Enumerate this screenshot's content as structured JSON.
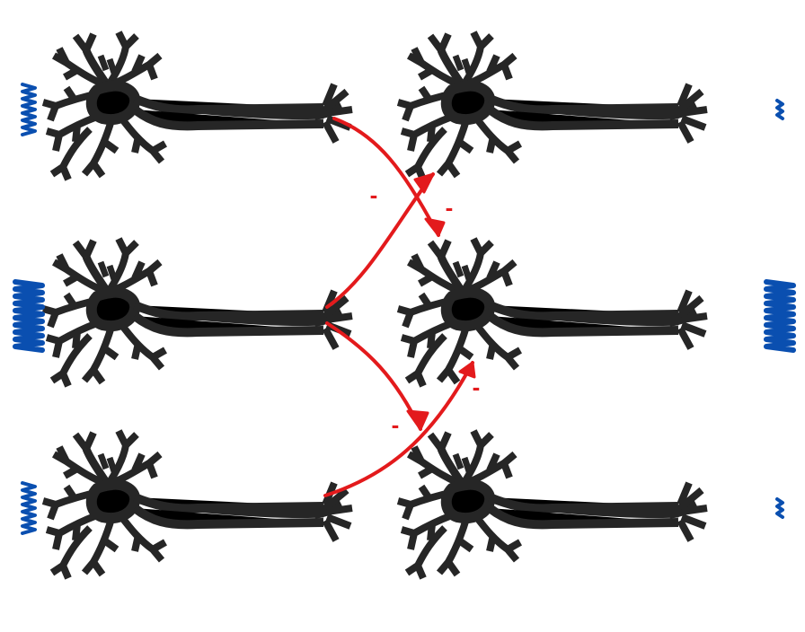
{
  "diagram": {
    "colors": {
      "neuron": "#262626",
      "inhibition": "#e31a1c",
      "activity": "#0a4fb0",
      "background": "#ffffff"
    },
    "layout": {
      "columns": 2,
      "rows": 3
    },
    "neurons": [
      {
        "id": "top-left",
        "column": 1,
        "row": 1,
        "activity": "medium"
      },
      {
        "id": "middle-left",
        "column": 1,
        "row": 2,
        "activity": "high"
      },
      {
        "id": "bottom-left",
        "column": 1,
        "row": 3,
        "activity": "medium"
      },
      {
        "id": "top-right",
        "column": 2,
        "row": 1,
        "activity": "low"
      },
      {
        "id": "middle-right",
        "column": 2,
        "row": 2,
        "activity": "high"
      },
      {
        "id": "bottom-right",
        "column": 2,
        "row": 3,
        "activity": "low"
      }
    ],
    "inhibitory_connections": [
      {
        "from": "top-left",
        "to": "middle-right",
        "sign": "-"
      },
      {
        "from": "middle-left",
        "to": "top-right",
        "sign": "-"
      },
      {
        "from": "middle-left",
        "to": "bottom-right",
        "sign": "-"
      },
      {
        "from": "bottom-left",
        "to": "middle-right",
        "sign": "-"
      }
    ],
    "minus_labels": [
      "-",
      "-",
      "-",
      "-"
    ]
  }
}
